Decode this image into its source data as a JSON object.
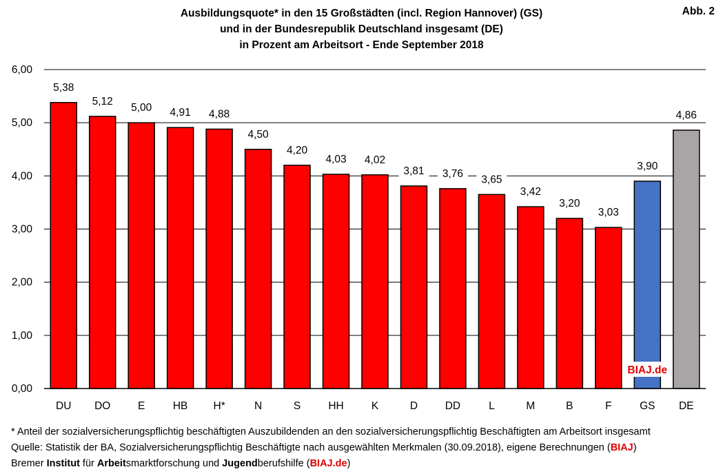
{
  "title_lines": [
    "Ausbildungsquote* in den 15 Großstädten (incl. Region Hannover) (GS)",
    "und in der Bundesrepublik Deutschland insgesamt (DE)",
    "in Prozent am Arbeitsort - Ende September 2018"
  ],
  "figure_label": "Abb. 2",
  "watermark": "BIAJ.de",
  "footnote": {
    "line1": "* Anteil der sozialversicherungspflichtig beschäftigten Auszubildenden an den sozialversicherungspflichtig Beschäftigten am Arbeitsort insgesamt",
    "line2_prefix": "Quelle: Statistik der BA, Sozialversicherungspflichtig Beschäftigte nach ausgewählten Merkmalen (30.09.2018), eigene Berechnungen (",
    "line2_red": "BIAJ",
    "line2_suffix": ")",
    "line3_parts": [
      {
        "text": "Bremer ",
        "style": "normal"
      },
      {
        "text": "Institut",
        "style": "bold"
      },
      {
        "text": " für ",
        "style": "normal"
      },
      {
        "text": "Arbeit",
        "style": "bold"
      },
      {
        "text": "smarktforschung und ",
        "style": "normal"
      },
      {
        "text": "Jugend",
        "style": "bold"
      },
      {
        "text": "berufshilfe (",
        "style": "normal"
      },
      {
        "text": "BIAJ.de",
        "style": "red"
      },
      {
        "text": ")",
        "style": "normal"
      }
    ]
  },
  "colors": {
    "cities": "#ff0000",
    "gs": "#4472c4",
    "de": "#aaa5a5",
    "brand_red": "#e00000"
  },
  "chart_data": {
    "type": "bar",
    "categories": [
      "DU",
      "DO",
      "E",
      "HB",
      "H*",
      "N",
      "S",
      "HH",
      "K",
      "D",
      "DD",
      "L",
      "M",
      "B",
      "F",
      "GS",
      "DE"
    ],
    "values": [
      5.38,
      5.12,
      5.0,
      4.91,
      4.88,
      4.5,
      4.2,
      4.03,
      4.02,
      3.81,
      3.76,
      3.65,
      3.42,
      3.2,
      3.03,
      3.9,
      4.86
    ],
    "value_labels": [
      "5,38",
      "5,12",
      "5,00",
      "4,91",
      "4,88",
      "4,50",
      "4,20",
      "4,03",
      "4,02",
      "3,81",
      "3,76",
      "3,65",
      "3,42",
      "3,20",
      "3,03",
      "3,90",
      "4,86"
    ],
    "bar_colors": [
      "cities",
      "cities",
      "cities",
      "cities",
      "cities",
      "cities",
      "cities",
      "cities",
      "cities",
      "cities",
      "cities",
      "cities",
      "cities",
      "cities",
      "cities",
      "gs",
      "de"
    ],
    "ylim": [
      0,
      6
    ],
    "yticks": [
      0,
      1,
      2,
      3,
      4,
      5,
      6
    ],
    "ytick_labels": [
      "0,00",
      "1,00",
      "2,00",
      "3,00",
      "4,00",
      "5,00",
      "6,00"
    ],
    "grid": true,
    "xlabel": "",
    "ylabel": ""
  }
}
